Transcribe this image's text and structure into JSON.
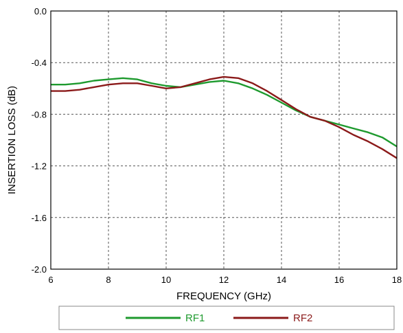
{
  "chart_data": {
    "type": "line",
    "xlabel": "FREQUENCY (GHz)",
    "ylabel": "INSERTION LOSS (dB)",
    "xlim": [
      6,
      18
    ],
    "ylim": [
      -2.0,
      0.0
    ],
    "xticks": [
      6,
      8,
      10,
      12,
      14,
      16,
      18
    ],
    "xtick_labels": [
      "6",
      "8",
      "10",
      "12",
      "14",
      "16",
      "18"
    ],
    "yticks": [
      0.0,
      -0.4,
      -0.8,
      -1.2,
      -1.6,
      -2.0
    ],
    "ytick_labels": [
      "0.0",
      "-0.4",
      "-0.8",
      "-1.2",
      "-1.6",
      "-2.0"
    ],
    "grid": true,
    "legend_position": "bottom",
    "series": [
      {
        "name": "RF1",
        "color": "#1e9a2e",
        "x": [
          6,
          6.5,
          7,
          7.5,
          8,
          8.5,
          9,
          9.5,
          10,
          10.5,
          11,
          11.5,
          12,
          12.5,
          13,
          13.5,
          14,
          14.5,
          15,
          15.5,
          16,
          16.5,
          17,
          17.5,
          18
        ],
        "y": [
          -0.57,
          -0.57,
          -0.56,
          -0.54,
          -0.53,
          -0.52,
          -0.53,
          -0.56,
          -0.58,
          -0.59,
          -0.57,
          -0.55,
          -0.54,
          -0.56,
          -0.6,
          -0.65,
          -0.71,
          -0.77,
          -0.82,
          -0.85,
          -0.88,
          -0.91,
          -0.94,
          -0.98,
          -1.05
        ]
      },
      {
        "name": "RF2",
        "color": "#8b1a1a",
        "x": [
          6,
          6.5,
          7,
          7.5,
          8,
          8.5,
          9,
          9.5,
          10,
          10.5,
          11,
          11.5,
          12,
          12.5,
          13,
          13.5,
          14,
          14.5,
          15,
          15.5,
          16,
          16.5,
          17,
          17.5,
          18
        ],
        "y": [
          -0.62,
          -0.62,
          -0.61,
          -0.59,
          -0.57,
          -0.56,
          -0.56,
          -0.58,
          -0.6,
          -0.59,
          -0.56,
          -0.53,
          -0.51,
          -0.52,
          -0.56,
          -0.62,
          -0.69,
          -0.76,
          -0.82,
          -0.85,
          -0.9,
          -0.96,
          -1.01,
          -1.07,
          -1.14
        ]
      }
    ]
  }
}
